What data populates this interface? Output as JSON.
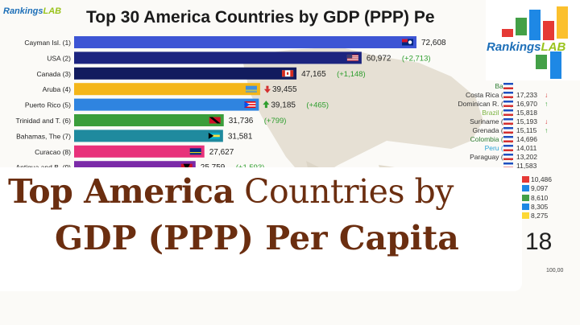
{
  "brand": {
    "name_a": "Rankings",
    "name_b": "LAB"
  },
  "chart_data": {
    "type": "bar",
    "title": "Top 30 America Countries by GDP (PPP) Pe",
    "year": "18",
    "axis_tick": "100,00",
    "xlim": [
      0,
      100000
    ],
    "categories": [
      "Cayman Isl. (1)",
      "USA (2)",
      "Canada (3)",
      "Aruba (4)",
      "Puerto Rico (5)",
      "Trinidad and T. (6)",
      "Bahamas, The (7)",
      "Curacao (8)",
      "Antigua and B. (9)"
    ],
    "values": [
      72608,
      60972,
      47165,
      39455,
      39185,
      31736,
      31581,
      27627,
      25759
    ],
    "value_labels": [
      "72,608",
      "60,972",
      "47,165",
      "39,455",
      "39,185",
      "31,736",
      "31,581",
      "27,627",
      "25,759"
    ],
    "changes": [
      "",
      "(+2,713)",
      "(+1,148)",
      "",
      "(+465)",
      "(+799)",
      "",
      "",
      "(+1,593)"
    ],
    "trend": [
      "none",
      "none",
      "none",
      "down",
      "up",
      "none",
      "none",
      "none",
      "none"
    ],
    "colors": [
      "#3d55d4",
      "#1c247f",
      "#121b5e",
      "#f4b61a",
      "#2f84e0",
      "#3b9e3b",
      "#1f8a9e",
      "#e8317a",
      "#7b2aa8"
    ],
    "flags": [
      "cayman",
      "usa",
      "canada",
      "aruba",
      "puertorico",
      "trinidad",
      "bahamas",
      "curacao",
      "antigua"
    ],
    "side_list": [
      {
        "label": "Barba",
        "value": "",
        "trend": "none",
        "color": "#2e7d32",
        "flag": "barbados"
      },
      {
        "label": "Costa Rica (17)",
        "value": "17,233",
        "trend": "down",
        "color": "#333333",
        "flag": "costarica"
      },
      {
        "label": "Dominican R. (18)",
        "value": "16,970",
        "trend": "up",
        "color": "#333333",
        "flag": "dominican"
      },
      {
        "label": "Brazil (19)",
        "value": "15,818",
        "trend": "none",
        "color": "#7cb342",
        "flag": "brazil"
      },
      {
        "label": "Suriname (20)",
        "value": "15,193",
        "trend": "down",
        "color": "#333333",
        "flag": "suriname"
      },
      {
        "label": "Grenada (21)",
        "value": "15,115",
        "trend": "up",
        "color": "#333333",
        "flag": "grenada"
      },
      {
        "label": "Colombia (22)",
        "value": "14,696",
        "trend": "none",
        "color": "#2e7d32",
        "flag": "colombia"
      },
      {
        "label": "Peru (23)",
        "value": "14,011",
        "trend": "none",
        "color": "#29a3d6",
        "flag": "peru"
      },
      {
        "label": "Paraguay (24)",
        "value": "13,202",
        "trend": "none",
        "color": "#333333",
        "flag": "paraguay"
      },
      {
        "label": "",
        "value": "11,583",
        "trend": "none",
        "color": "#333333",
        "flag": "ecuador"
      }
    ],
    "side_list_below": [
      "10,486",
      "9,097",
      "8,610",
      "8,305",
      "8,275"
    ],
    "side_list_below_flags": [
      "#e53935",
      "#1e88e5",
      "#43a047",
      "#1e88e5",
      "#fdd835"
    ]
  },
  "banner": {
    "line1_bold": "Top America",
    "line1_rest": " Countries by",
    "line2": "GDP (PPP) Per Capita"
  },
  "logo_colors": [
    "#e53935",
    "#43a047",
    "#1e88e5",
    "#e53935",
    "#fbc02d",
    "#43a047",
    "#1e88e5"
  ]
}
